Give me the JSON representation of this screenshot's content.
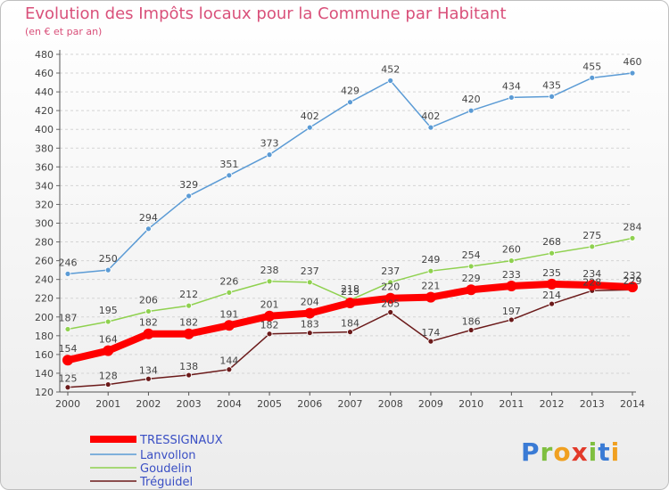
{
  "title": "Evolution des Impôts locaux pour la Commune par Habitant",
  "subtitle": "(en € et par an)",
  "logo": {
    "letters": [
      {
        "ch": "P",
        "color": "#3a7bd5"
      },
      {
        "ch": "r",
        "color": "#7fbf3f"
      },
      {
        "ch": "o",
        "color": "#f0a020"
      },
      {
        "ch": "x",
        "color": "#e23a2a"
      },
      {
        "ch": "i",
        "color": "#7fbf3f"
      },
      {
        "ch": "t",
        "color": "#3a7bd5"
      },
      {
        "ch": "i",
        "color": "#f0a020"
      }
    ]
  },
  "chart_data": {
    "type": "line",
    "title": "Evolution des Impôts locaux pour la Commune par Habitant",
    "subtitle": "(en € et par an)",
    "x": [
      "2000",
      "2001",
      "2002",
      "2003",
      "2004",
      "2005",
      "2006",
      "2007",
      "2008",
      "2009",
      "2010",
      "2011",
      "2012",
      "2013",
      "2014"
    ],
    "ylim": [
      120,
      480
    ],
    "yticks": [
      120,
      140,
      160,
      180,
      200,
      220,
      240,
      260,
      280,
      300,
      320,
      340,
      360,
      380,
      400,
      420,
      440,
      460,
      480
    ],
    "grid": true,
    "legend": "bottom-left",
    "series": [
      {
        "name": "TRESSIGNAUX",
        "color": "#ff0000",
        "values": [
          154,
          164,
          182,
          182,
          191,
          201,
          204,
          215,
          220,
          221,
          229,
          233,
          235,
          234,
          232
        ]
      },
      {
        "name": "Lanvollon",
        "color": "#5b9bd5",
        "values": [
          246,
          250,
          294,
          329,
          351,
          373,
          402,
          429,
          452,
          402,
          420,
          434,
          435,
          455,
          460
        ]
      },
      {
        "name": "Goudelin",
        "color": "#8fd14f",
        "values": [
          187,
          195,
          206,
          212,
          226,
          238,
          237,
          218,
          237,
          249,
          254,
          260,
          268,
          275,
          284
        ]
      },
      {
        "name": "Tréguidel",
        "color": "#6b1a1a",
        "values": [
          125,
          128,
          134,
          138,
          144,
          182,
          183,
          184,
          205,
          174,
          186,
          197,
          214,
          228,
          229
        ]
      }
    ]
  }
}
